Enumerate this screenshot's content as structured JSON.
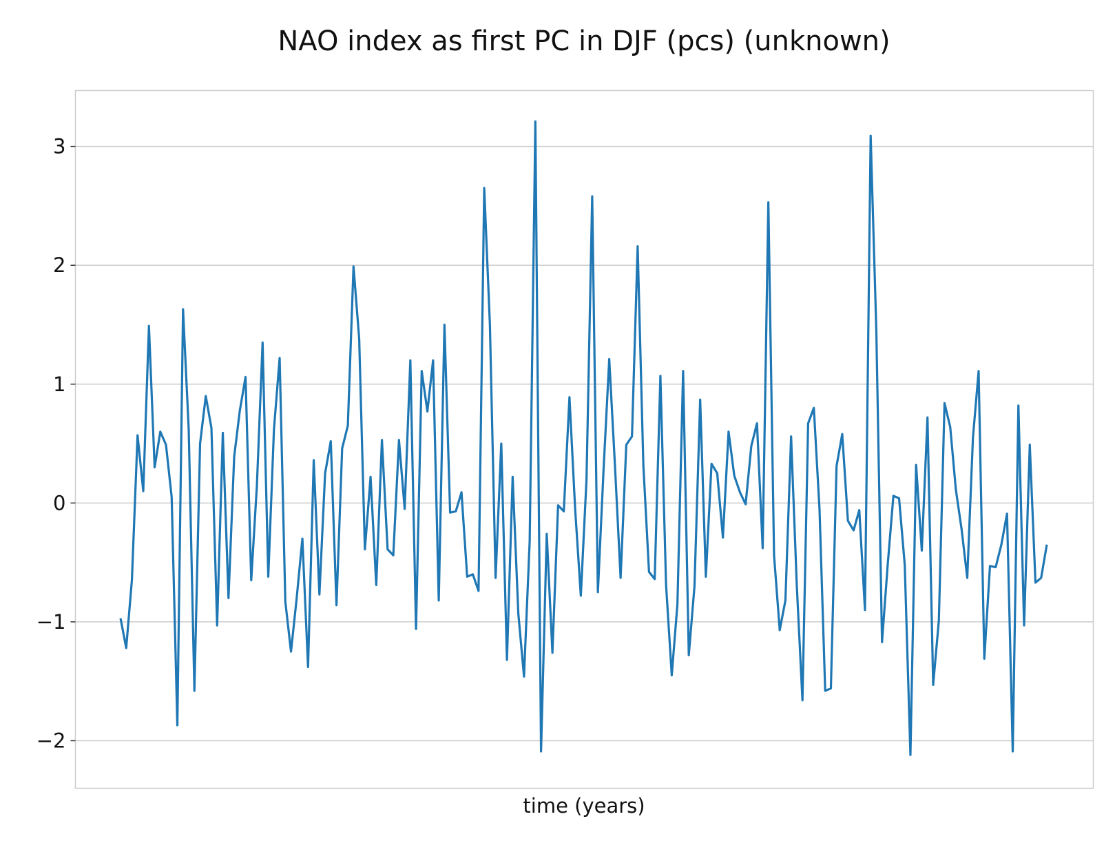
{
  "chart_data": {
    "type": "line",
    "title": "NAO index as first PC in DJF (pcs) (unknown)",
    "xlabel": "time (years)",
    "ylabel": "",
    "ylim": [
      -2.4,
      3.47
    ],
    "yticks": [
      3,
      2,
      1,
      0,
      -1,
      -2
    ],
    "ytick_labels": [
      "3",
      "2",
      "1",
      "0",
      "−1",
      "−2"
    ],
    "grid": "horizontal",
    "x_ticks_shown": false,
    "series": [
      {
        "color": "#1f77b4",
        "values": [
          -0.97,
          -1.22,
          -0.65,
          0.57,
          0.1,
          1.49,
          0.3,
          0.6,
          0.49,
          0.05,
          -1.87,
          1.63,
          0.62,
          -1.58,
          0.5,
          0.9,
          0.63,
          -1.03,
          0.59,
          -0.8,
          0.39,
          0.78,
          1.06,
          -0.65,
          0.15,
          1.35,
          -0.62,
          0.62,
          1.22,
          -0.83,
          -1.25,
          -0.8,
          -0.3,
          -1.38,
          0.36,
          -0.77,
          0.25,
          0.52,
          -0.86,
          0.46,
          0.65,
          1.99,
          1.38,
          -0.39,
          0.22,
          -0.69,
          0.53,
          -0.39,
          -0.44,
          0.53,
          -0.05,
          1.2,
          -1.06,
          1.11,
          0.77,
          1.2,
          -0.82,
          1.5,
          -0.08,
          -0.07,
          0.09,
          -0.62,
          -0.6,
          -0.74,
          2.65,
          1.5,
          -0.63,
          0.5,
          -1.32,
          0.22,
          -0.93,
          -1.46,
          -0.32,
          3.21,
          -2.09,
          -0.26,
          -1.26,
          -0.02,
          -0.07,
          0.89,
          -0.05,
          -0.78,
          0.2,
          2.58,
          -0.75,
          0.28,
          1.21,
          0.32,
          -0.63,
          0.49,
          0.56,
          2.16,
          0.32,
          -0.58,
          -0.64,
          1.07,
          -0.69,
          -1.45,
          -0.85,
          1.11,
          -1.28,
          -0.7,
          0.87,
          -0.62,
          0.33,
          0.25,
          -0.29,
          0.6,
          0.23,
          0.09,
          -0.01,
          0.48,
          0.67,
          -0.38,
          2.53,
          -0.44,
          -1.07,
          -0.82,
          0.56,
          -0.69,
          -1.66,
          0.67,
          0.8,
          -0.05,
          -1.58,
          -1.56,
          0.31,
          0.58,
          -0.15,
          -0.23,
          -0.06,
          -0.9,
          3.09,
          1.45,
          -1.17,
          -0.52,
          0.06,
          0.04,
          -0.52,
          -2.12,
          0.32,
          -0.4,
          0.72,
          -1.53,
          -0.99,
          0.84,
          0.64,
          0.11,
          -0.22,
          -0.63,
          0.55,
          1.11,
          -1.31,
          -0.53,
          -0.54,
          -0.35,
          -0.09,
          -2.09,
          0.82,
          -1.03,
          0.49,
          -0.67,
          -0.63,
          -0.35
        ]
      }
    ]
  }
}
